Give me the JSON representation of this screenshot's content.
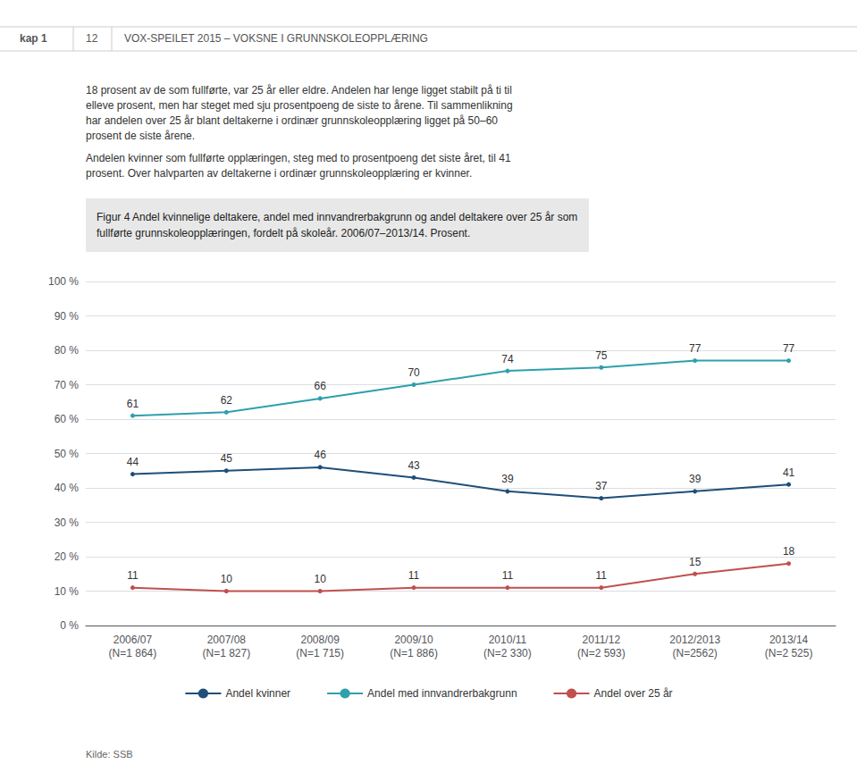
{
  "chart_data": {
    "type": "line",
    "title": "Figur 4 Andel kvinnelige deltakere, andel med innvandrerbakgrunn og andel deltakere over 25 år som\nfullførte grunnskoleopplæringen, fordelt på skoleår. 2006/07–2013/14. Prosent.",
    "annotations": [
      "kap 1",
      "12",
      "VOX-SPEILET 2015 – VOKSNE I GRUNNSKOLEOPPLÆRING",
      "18 prosent av de som fullførte, var 25 år eller eldre. Andelen har lenge ligget stabilt på ti til\nelleve prosent, men har steget med sju prosentpoeng de siste to årene. Til sammenlikning\nhar andelen over 25 år blant deltakerne i ordinær grunnskoleopplæring ligget på 50–60\nprosent de siste årene.",
      "Andelen kvinner som fullførte opplæringen, steg med to prosentpoeng det siste året, til 41\nprosent. Over halvparten av deltakerne i ordinær grunnskoleopplæring er kvinner.",
      "Kilde: SSB"
    ],
    "categories": [
      "2006/07\n(N=1 864)",
      "2007/08\n(N=1 827)",
      "2008/09\n(N=1 715)",
      "2009/10\n(N=1 886)",
      "2010/11\n(N=2 330)",
      "2011/12\n(N=2 593)",
      "2012/2013\n(N=2562)",
      "2013/14\n(N=2 525)"
    ],
    "series": [
      {
        "name": "Andel kvinner",
        "color": "#1f4e79",
        "values": [
          44,
          45,
          46,
          43,
          39,
          37,
          39,
          41
        ]
      },
      {
        "name": "Andel med innvandrerbakgrunn",
        "color": "#2e9fad",
        "values": [
          61,
          62,
          66,
          70,
          74,
          75,
          77,
          77
        ]
      },
      {
        "name": "Andel over 25 år",
        "color": "#c0504d",
        "values": [
          11,
          10,
          10,
          11,
          11,
          11,
          15,
          18
        ]
      }
    ],
    "ylim": [
      0,
      100
    ],
    "yticks": [
      {
        "value": 0,
        "label": "0 %"
      },
      {
        "value": 10,
        "label": "10 %"
      },
      {
        "value": 20,
        "label": "20 %"
      },
      {
        "value": 30,
        "label": "30 %"
      },
      {
        "value": 40,
        "label": "40 %"
      },
      {
        "value": 50,
        "label": "50 %"
      },
      {
        "value": 60,
        "label": "60 %"
      },
      {
        "value": 70,
        "label": "70 %"
      },
      {
        "value": 80,
        "label": "80 %"
      },
      {
        "value": 90,
        "label": "90 %"
      },
      {
        "value": 100,
        "label": "100 %"
      }
    ],
    "grid": true,
    "legend": "bottom",
    "data_labels": true
  }
}
